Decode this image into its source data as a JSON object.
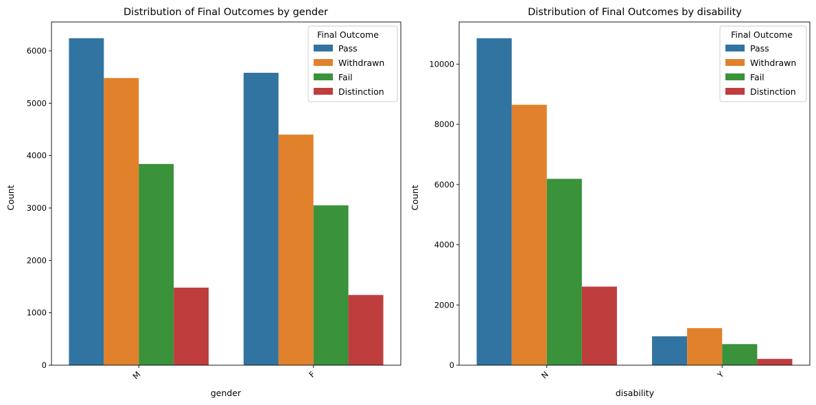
{
  "colors": {
    "Pass": "#3274a1",
    "Withdrawn": "#e1812c",
    "Fail": "#3a923a",
    "Distinction": "#c03d3e"
  },
  "chart_data": [
    {
      "type": "bar",
      "title": "Distribution of Final Outcomes by gender",
      "xlabel": "gender",
      "ylabel": "Count",
      "categories": [
        "M",
        "F"
      ],
      "ylim": [
        0,
        6550
      ],
      "yticks": [
        0,
        1000,
        2000,
        3000,
        4000,
        5000,
        6000
      ],
      "grid": false,
      "legend_title": "Final Outcome",
      "legend_position": "top-right",
      "series": [
        {
          "name": "Pass",
          "values": [
            6240,
            5580
          ]
        },
        {
          "name": "Withdrawn",
          "values": [
            5480,
            4400
          ]
        },
        {
          "name": "Fail",
          "values": [
            3840,
            3050
          ]
        },
        {
          "name": "Distinction",
          "values": [
            1480,
            1340
          ]
        }
      ]
    },
    {
      "type": "bar",
      "title": "Distribution of Final Outcomes by disability",
      "xlabel": "disability",
      "ylabel": "Count",
      "categories": [
        "N",
        "Y"
      ],
      "ylim": [
        0,
        11400
      ],
      "yticks": [
        0,
        2000,
        4000,
        6000,
        8000,
        10000
      ],
      "grid": false,
      "legend_title": "Final Outcome",
      "legend_position": "top-right",
      "series": [
        {
          "name": "Pass",
          "values": [
            10860,
            960
          ]
        },
        {
          "name": "Withdrawn",
          "values": [
            8650,
            1230
          ]
        },
        {
          "name": "Fail",
          "values": [
            6190,
            700
          ]
        },
        {
          "name": "Distinction",
          "values": [
            2610,
            210
          ]
        }
      ]
    }
  ]
}
